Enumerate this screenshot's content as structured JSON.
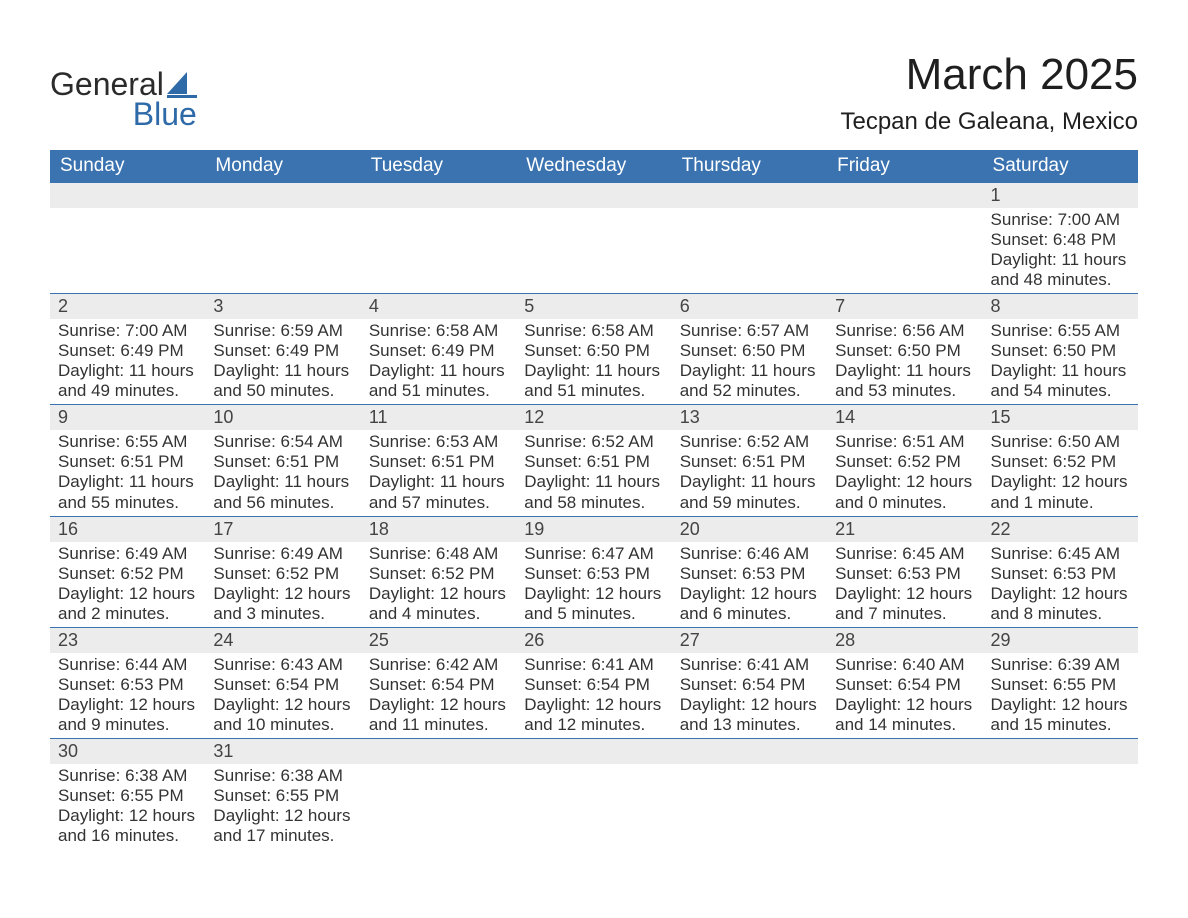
{
  "logo": {
    "textA": "General",
    "textB": "Blue",
    "iconColor": "#2f6aa8",
    "textColorA": "#2b2b2b",
    "textColorB": "#2f6aa8"
  },
  "title": "March 2025",
  "location": "Tecpan de Galeana, Mexico",
  "colors": {
    "headerBg": "#3b73b0",
    "headerText": "#ffffff",
    "daynumBg": "#ececec",
    "rowBorder": "#3b73b0",
    "bodyText": "#333333"
  },
  "weekdays": [
    "Sunday",
    "Monday",
    "Tuesday",
    "Wednesday",
    "Thursday",
    "Friday",
    "Saturday"
  ],
  "weeks": [
    [
      null,
      null,
      null,
      null,
      null,
      null,
      {
        "n": "1",
        "sr": "Sunrise: 7:00 AM",
        "ss": "Sunset: 6:48 PM",
        "d1": "Daylight: 11 hours",
        "d2": "and 48 minutes."
      }
    ],
    [
      {
        "n": "2",
        "sr": "Sunrise: 7:00 AM",
        "ss": "Sunset: 6:49 PM",
        "d1": "Daylight: 11 hours",
        "d2": "and 49 minutes."
      },
      {
        "n": "3",
        "sr": "Sunrise: 6:59 AM",
        "ss": "Sunset: 6:49 PM",
        "d1": "Daylight: 11 hours",
        "d2": "and 50 minutes."
      },
      {
        "n": "4",
        "sr": "Sunrise: 6:58 AM",
        "ss": "Sunset: 6:49 PM",
        "d1": "Daylight: 11 hours",
        "d2": "and 51 minutes."
      },
      {
        "n": "5",
        "sr": "Sunrise: 6:58 AM",
        "ss": "Sunset: 6:50 PM",
        "d1": "Daylight: 11 hours",
        "d2": "and 51 minutes."
      },
      {
        "n": "6",
        "sr": "Sunrise: 6:57 AM",
        "ss": "Sunset: 6:50 PM",
        "d1": "Daylight: 11 hours",
        "d2": "and 52 minutes."
      },
      {
        "n": "7",
        "sr": "Sunrise: 6:56 AM",
        "ss": "Sunset: 6:50 PM",
        "d1": "Daylight: 11 hours",
        "d2": "and 53 minutes."
      },
      {
        "n": "8",
        "sr": "Sunrise: 6:55 AM",
        "ss": "Sunset: 6:50 PM",
        "d1": "Daylight: 11 hours",
        "d2": "and 54 minutes."
      }
    ],
    [
      {
        "n": "9",
        "sr": "Sunrise: 6:55 AM",
        "ss": "Sunset: 6:51 PM",
        "d1": "Daylight: 11 hours",
        "d2": "and 55 minutes."
      },
      {
        "n": "10",
        "sr": "Sunrise: 6:54 AM",
        "ss": "Sunset: 6:51 PM",
        "d1": "Daylight: 11 hours",
        "d2": "and 56 minutes."
      },
      {
        "n": "11",
        "sr": "Sunrise: 6:53 AM",
        "ss": "Sunset: 6:51 PM",
        "d1": "Daylight: 11 hours",
        "d2": "and 57 minutes."
      },
      {
        "n": "12",
        "sr": "Sunrise: 6:52 AM",
        "ss": "Sunset: 6:51 PM",
        "d1": "Daylight: 11 hours",
        "d2": "and 58 minutes."
      },
      {
        "n": "13",
        "sr": "Sunrise: 6:52 AM",
        "ss": "Sunset: 6:51 PM",
        "d1": "Daylight: 11 hours",
        "d2": "and 59 minutes."
      },
      {
        "n": "14",
        "sr": "Sunrise: 6:51 AM",
        "ss": "Sunset: 6:52 PM",
        "d1": "Daylight: 12 hours",
        "d2": "and 0 minutes."
      },
      {
        "n": "15",
        "sr": "Sunrise: 6:50 AM",
        "ss": "Sunset: 6:52 PM",
        "d1": "Daylight: 12 hours",
        "d2": "and 1 minute."
      }
    ],
    [
      {
        "n": "16",
        "sr": "Sunrise: 6:49 AM",
        "ss": "Sunset: 6:52 PM",
        "d1": "Daylight: 12 hours",
        "d2": "and 2 minutes."
      },
      {
        "n": "17",
        "sr": "Sunrise: 6:49 AM",
        "ss": "Sunset: 6:52 PM",
        "d1": "Daylight: 12 hours",
        "d2": "and 3 minutes."
      },
      {
        "n": "18",
        "sr": "Sunrise: 6:48 AM",
        "ss": "Sunset: 6:52 PM",
        "d1": "Daylight: 12 hours",
        "d2": "and 4 minutes."
      },
      {
        "n": "19",
        "sr": "Sunrise: 6:47 AM",
        "ss": "Sunset: 6:53 PM",
        "d1": "Daylight: 12 hours",
        "d2": "and 5 minutes."
      },
      {
        "n": "20",
        "sr": "Sunrise: 6:46 AM",
        "ss": "Sunset: 6:53 PM",
        "d1": "Daylight: 12 hours",
        "d2": "and 6 minutes."
      },
      {
        "n": "21",
        "sr": "Sunrise: 6:45 AM",
        "ss": "Sunset: 6:53 PM",
        "d1": "Daylight: 12 hours",
        "d2": "and 7 minutes."
      },
      {
        "n": "22",
        "sr": "Sunrise: 6:45 AM",
        "ss": "Sunset: 6:53 PM",
        "d1": "Daylight: 12 hours",
        "d2": "and 8 minutes."
      }
    ],
    [
      {
        "n": "23",
        "sr": "Sunrise: 6:44 AM",
        "ss": "Sunset: 6:53 PM",
        "d1": "Daylight: 12 hours",
        "d2": "and 9 minutes."
      },
      {
        "n": "24",
        "sr": "Sunrise: 6:43 AM",
        "ss": "Sunset: 6:54 PM",
        "d1": "Daylight: 12 hours",
        "d2": "and 10 minutes."
      },
      {
        "n": "25",
        "sr": "Sunrise: 6:42 AM",
        "ss": "Sunset: 6:54 PM",
        "d1": "Daylight: 12 hours",
        "d2": "and 11 minutes."
      },
      {
        "n": "26",
        "sr": "Sunrise: 6:41 AM",
        "ss": "Sunset: 6:54 PM",
        "d1": "Daylight: 12 hours",
        "d2": "and 12 minutes."
      },
      {
        "n": "27",
        "sr": "Sunrise: 6:41 AM",
        "ss": "Sunset: 6:54 PM",
        "d1": "Daylight: 12 hours",
        "d2": "and 13 minutes."
      },
      {
        "n": "28",
        "sr": "Sunrise: 6:40 AM",
        "ss": "Sunset: 6:54 PM",
        "d1": "Daylight: 12 hours",
        "d2": "and 14 minutes."
      },
      {
        "n": "29",
        "sr": "Sunrise: 6:39 AM",
        "ss": "Sunset: 6:55 PM",
        "d1": "Daylight: 12 hours",
        "d2": "and 15 minutes."
      }
    ],
    [
      {
        "n": "30",
        "sr": "Sunrise: 6:38 AM",
        "ss": "Sunset: 6:55 PM",
        "d1": "Daylight: 12 hours",
        "d2": "and 16 minutes."
      },
      {
        "n": "31",
        "sr": "Sunrise: 6:38 AM",
        "ss": "Sunset: 6:55 PM",
        "d1": "Daylight: 12 hours",
        "d2": "and 17 minutes."
      },
      null,
      null,
      null,
      null,
      null
    ]
  ]
}
